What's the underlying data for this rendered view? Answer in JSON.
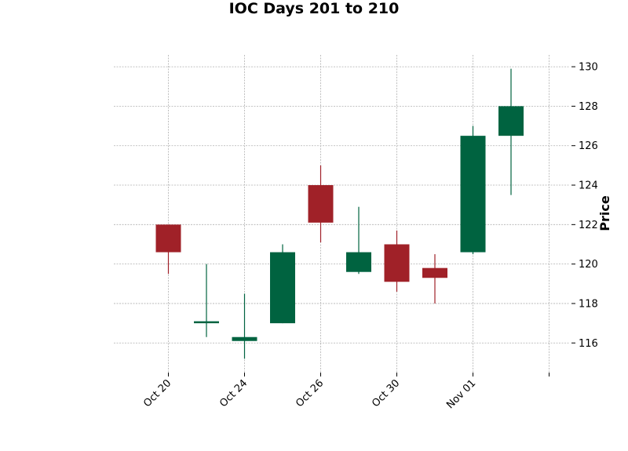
{
  "chart_data": {
    "type": "candlestick",
    "title": "IOC Days 201 to 210",
    "ylabel": "Price",
    "xlabel": "",
    "ylim": [
      114.5,
      130.6
    ],
    "yticks": [
      116,
      118,
      120,
      122,
      124,
      126,
      128,
      130
    ],
    "x_tick_labels": [
      {
        "index": 0,
        "label": "Oct 20"
      },
      {
        "index": 2,
        "label": "Oct 24"
      },
      {
        "index": 4,
        "label": "Oct 26"
      },
      {
        "index": 6,
        "label": "Oct 30"
      },
      {
        "index": 8,
        "label": "Nov 01"
      },
      {
        "index": 10,
        "label": ""
      }
    ],
    "candles": [
      {
        "open": 122.0,
        "high": 122.0,
        "low": 119.5,
        "close": 120.6
      },
      {
        "open": 117.0,
        "high": 120.0,
        "low": 116.3,
        "close": 117.1
      },
      {
        "open": 116.1,
        "high": 118.5,
        "low": 115.2,
        "close": 116.3
      },
      {
        "open": 117.0,
        "high": 121.0,
        "low": 117.0,
        "close": 120.6
      },
      {
        "open": 124.0,
        "high": 125.0,
        "low": 121.1,
        "close": 122.1
      },
      {
        "open": 119.6,
        "high": 122.9,
        "low": 119.5,
        "close": 120.6
      },
      {
        "open": 121.0,
        "high": 121.7,
        "low": 118.6,
        "close": 119.1
      },
      {
        "open": 119.8,
        "high": 120.5,
        "low": 118.0,
        "close": 119.3
      },
      {
        "open": 120.6,
        "high": 127.0,
        "low": 120.5,
        "close": 126.5
      },
      {
        "open": 126.5,
        "high": 129.9,
        "low": 123.5,
        "close": 128.0
      }
    ],
    "up_color": "#006340",
    "down_color": "#a02128",
    "grid": true,
    "y_axis_side": "right"
  }
}
